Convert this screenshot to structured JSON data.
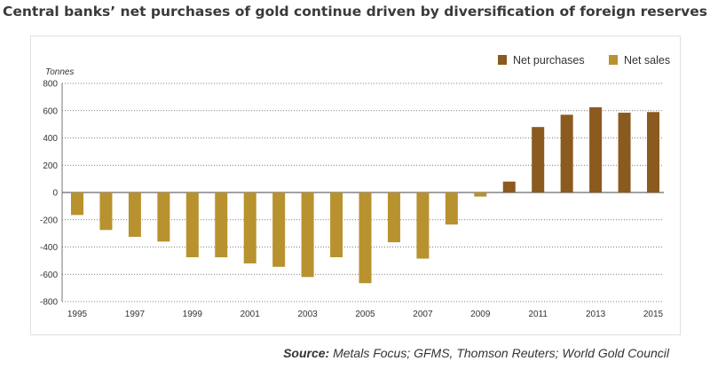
{
  "chart_data": {
    "type": "bar",
    "title": "Central banks’ net purchases of gold continue driven by diversification of foreign reserves",
    "ylabel": "Tonnes",
    "xlabel": "",
    "ylim": [
      -800,
      800
    ],
    "yticks": [
      800,
      600,
      400,
      200,
      0,
      -200,
      -400,
      -600,
      -800
    ],
    "ytick_labels": [
      "800",
      "600",
      "400",
      "200",
      "0",
      "-200",
      "-400",
      "-600",
      "-800"
    ],
    "categories": [
      "1995",
      "1996",
      "1997",
      "1998",
      "1999",
      "2000",
      "2001",
      "2002",
      "2003",
      "2004",
      "2005",
      "2006",
      "2007",
      "2008",
      "2009",
      "2010",
      "2011",
      "2012",
      "2013",
      "2014",
      "2015"
    ],
    "xtick_labels": [
      "1995",
      "1997",
      "1999",
      "2001",
      "2003",
      "2005",
      "2007",
      "2009",
      "2011",
      "2013",
      "2015"
    ],
    "values": [
      -165,
      -275,
      -325,
      -360,
      -475,
      -475,
      -520,
      -545,
      -620,
      -475,
      -665,
      -365,
      -485,
      -235,
      -30,
      80,
      480,
      570,
      625,
      585,
      590
    ],
    "legend": [
      {
        "name": "Net purchases",
        "color": "#8a5a1f"
      },
      {
        "name": "Net sales",
        "color": "#b8922f"
      }
    ],
    "legend_position": "top-right",
    "grid": true
  },
  "source": {
    "label": "Source:",
    "text": " Metals Focus; GFMS, Thomson Reuters; World Gold Council"
  }
}
